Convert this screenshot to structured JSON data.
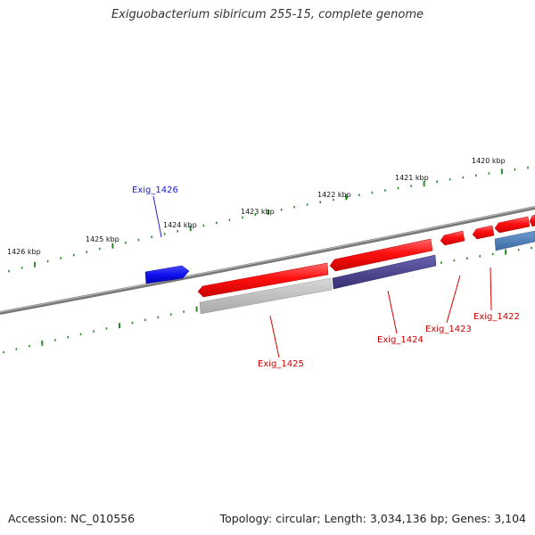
{
  "title": "Exiguobacterium sibiricum 255-15, complete genome",
  "footer": {
    "accession": "Accession: NC_010556",
    "summary": "Topology: circular; Length: 3,034,136 bp; Genes: 3,104"
  },
  "ticks": [
    "1420 kbp",
    "1421 kbp",
    "1422 kbp",
    "1423 kbp",
    "1424 kbp",
    "1425 kbp",
    "1426 kbp"
  ],
  "genes": [
    "Exig_1426",
    "Exig_1425",
    "Exig_1424",
    "Exig_1423",
    "Exig_1422"
  ],
  "colors": {
    "forward_gene": "#1a1aee",
    "reverse_gene": "#ee1111",
    "forward_label": "#1a1acc",
    "reverse_label": "#cc0000",
    "backbone": "#808080",
    "tick": "#2a8a2a",
    "feature_grey": "#c0c0c0",
    "feature_purple": "#4a4490",
    "feature_steelblue": "#4a7ab0"
  }
}
